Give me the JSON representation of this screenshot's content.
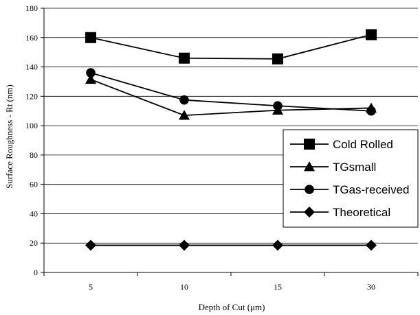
{
  "chart_data": {
    "type": "line",
    "title": "",
    "xlabel": "Depth of Cut (μm)",
    "ylabel": "Surface Roughness - Rt (nm)",
    "categories": [
      "5",
      "10",
      "15",
      "30"
    ],
    "ylim": [
      0,
      180
    ],
    "yticks": [
      0,
      20,
      40,
      60,
      80,
      100,
      120,
      140,
      160,
      180
    ],
    "grid": "horizontal",
    "legend_position": "right",
    "series": [
      {
        "name": "Cold Rolled",
        "marker": "square",
        "values": [
          160,
          146,
          145.5,
          162
        ]
      },
      {
        "name": "TGsmall",
        "marker": "triangle",
        "values": [
          131.5,
          107,
          110.5,
          112
        ]
      },
      {
        "name": "TGas-received",
        "marker": "circle",
        "values": [
          136,
          117.5,
          113.5,
          110
        ]
      },
      {
        "name": "Theoretical",
        "marker": "diamond",
        "values": [
          18.5,
          18.5,
          18.5,
          18.5
        ]
      }
    ],
    "colors": {
      "line": "#000000",
      "grid": "#000000",
      "background": "#ffffff"
    }
  }
}
